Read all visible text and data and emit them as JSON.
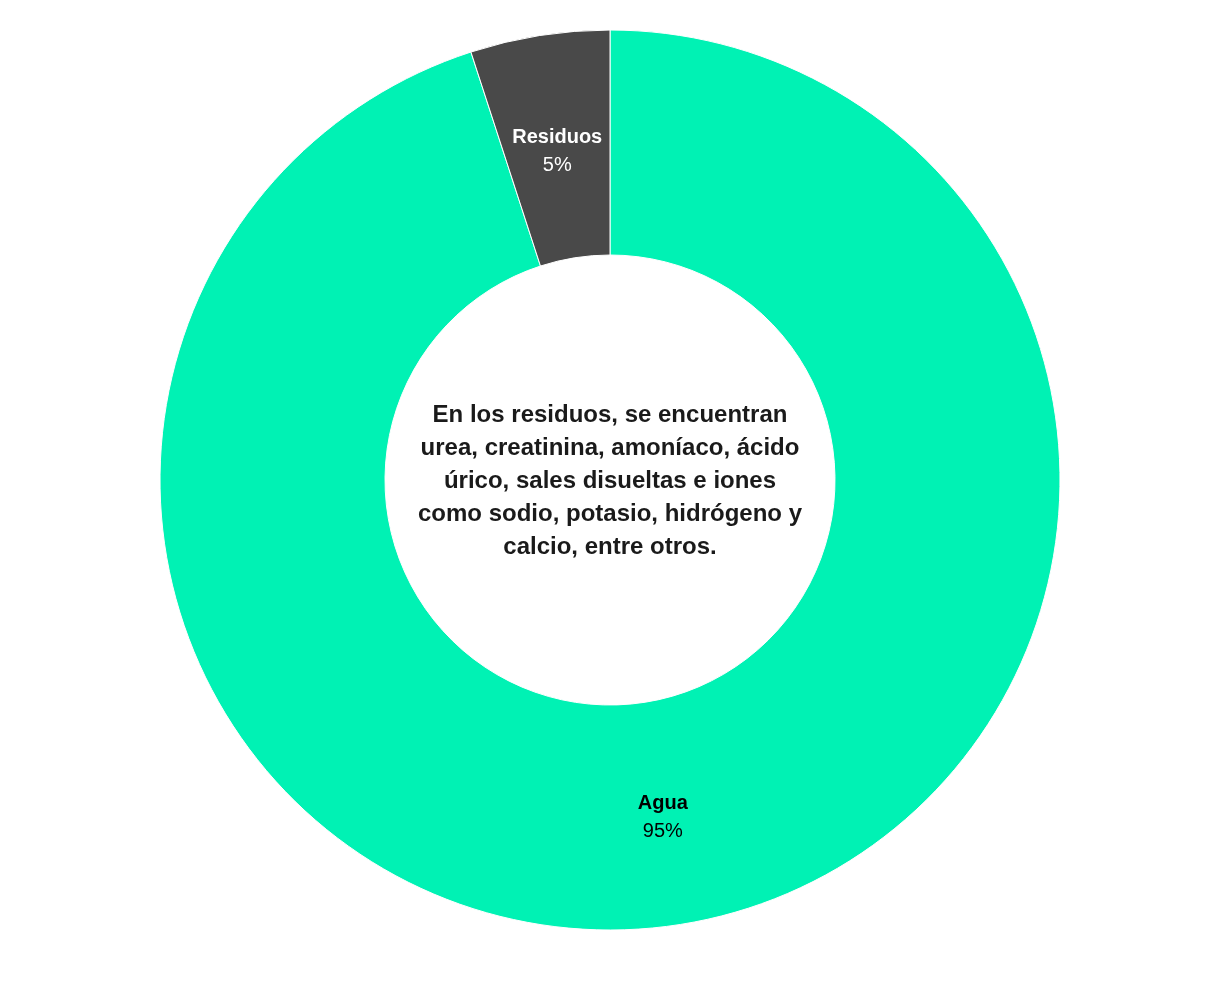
{
  "chart_data": {
    "type": "donut",
    "categories": [
      "Agua",
      "Residuos"
    ],
    "values": [
      95,
      5
    ],
    "colors": [
      "#00f2b4",
      "#494949"
    ],
    "value_labels": [
      "95%",
      "5%"
    ],
    "annotations": [
      "En los residuos, se encuentran urea, creatinina, amoníaco, ácido úrico, sales disueltas e iones como sodio, potasio, hidrógeno y calcio, entre otros."
    ]
  }
}
